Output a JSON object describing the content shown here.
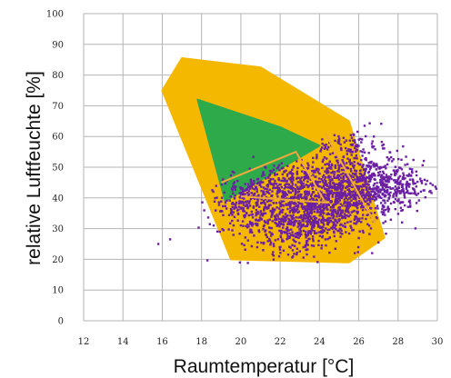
{
  "chart_data": {
    "type": "scatter",
    "title": "",
    "xlabel": "Raumtemperatur [°C]",
    "ylabel": "relative Luftfeuchte [%]",
    "xlim": [
      12,
      30
    ],
    "ylim": [
      0,
      100
    ],
    "x_ticks": [
      "12",
      "14",
      "16",
      "18",
      "20",
      "22",
      "24",
      "26",
      "28",
      "30"
    ],
    "y_ticks": [
      "0",
      "10",
      "20",
      "30",
      "40",
      "50",
      "60",
      "70",
      "80",
      "90",
      "100"
    ],
    "grid": true,
    "colors": {
      "outer_zone": "#F5B800",
      "inner_zone": "#2EAA4A",
      "points": "#6B1FA3",
      "zone_outline": "#F2A93B",
      "grid": "#B5B5B5"
    },
    "regions": [
      {
        "name": "outer comfort zone",
        "polygon": [
          [
            17.0,
            85.5
          ],
          [
            21.0,
            82.5
          ],
          [
            25.5,
            65.0
          ],
          [
            27.3,
            27.0
          ],
          [
            25.5,
            19.0
          ],
          [
            19.5,
            20.0
          ],
          [
            16.0,
            75.0
          ]
        ]
      },
      {
        "name": "inner comfort zone",
        "polygon": [
          [
            17.8,
            72.0
          ],
          [
            22.0,
            63.0
          ],
          [
            24.0,
            57.0
          ],
          [
            19.2,
            39.0
          ]
        ]
      }
    ],
    "outlines": [
      [
        [
          19.0,
          45.0
        ],
        [
          22.8,
          55.0
        ],
        [
          24.3,
          38.5
        ],
        [
          20.0,
          40.5
        ]
      ],
      [
        [
          24.3,
          61.0
        ],
        [
          26.8,
          32.0
        ]
      ]
    ],
    "scatter_clusters": [
      {
        "center": [
          24.5,
          40.0
        ],
        "spread": [
          1.6,
          6.5
        ],
        "count": 950,
        "tilt": 0.35
      },
      {
        "center": [
          22.8,
          32.0
        ],
        "spread": [
          1.4,
          5.0
        ],
        "count": 450,
        "tilt": 0.2
      },
      {
        "center": [
          26.6,
          44.0
        ],
        "spread": [
          1.1,
          5.0
        ],
        "count": 420,
        "tilt": 0.1
      },
      {
        "center": [
          22.0,
          44.0
        ],
        "spread": [
          1.2,
          4.0
        ],
        "count": 260,
        "tilt": 0.6
      },
      {
        "center": [
          20.0,
          39.0
        ],
        "spread": [
          0.8,
          4.0
        ],
        "count": 140,
        "tilt": 0.4
      },
      {
        "center": [
          25.5,
          57.0
        ],
        "spread": [
          0.8,
          2.5
        ],
        "count": 80,
        "tilt": 0.0
      },
      {
        "center": [
          28.3,
          44.0
        ],
        "spread": [
          0.7,
          3.0
        ],
        "count": 90,
        "tilt": 0.0
      }
    ],
    "scatter_outliers": [
      [
        15.8,
        25.0
      ],
      [
        16.4,
        26.5
      ],
      [
        18.6,
        42.0
      ],
      [
        18.9,
        38.5
      ],
      [
        29.6,
        42.0
      ],
      [
        29.2,
        45.5
      ],
      [
        26.3,
        63.5
      ],
      [
        25.8,
        22.0
      ],
      [
        27.0,
        25.5
      ],
      [
        19.5,
        35.0
      ]
    ]
  }
}
